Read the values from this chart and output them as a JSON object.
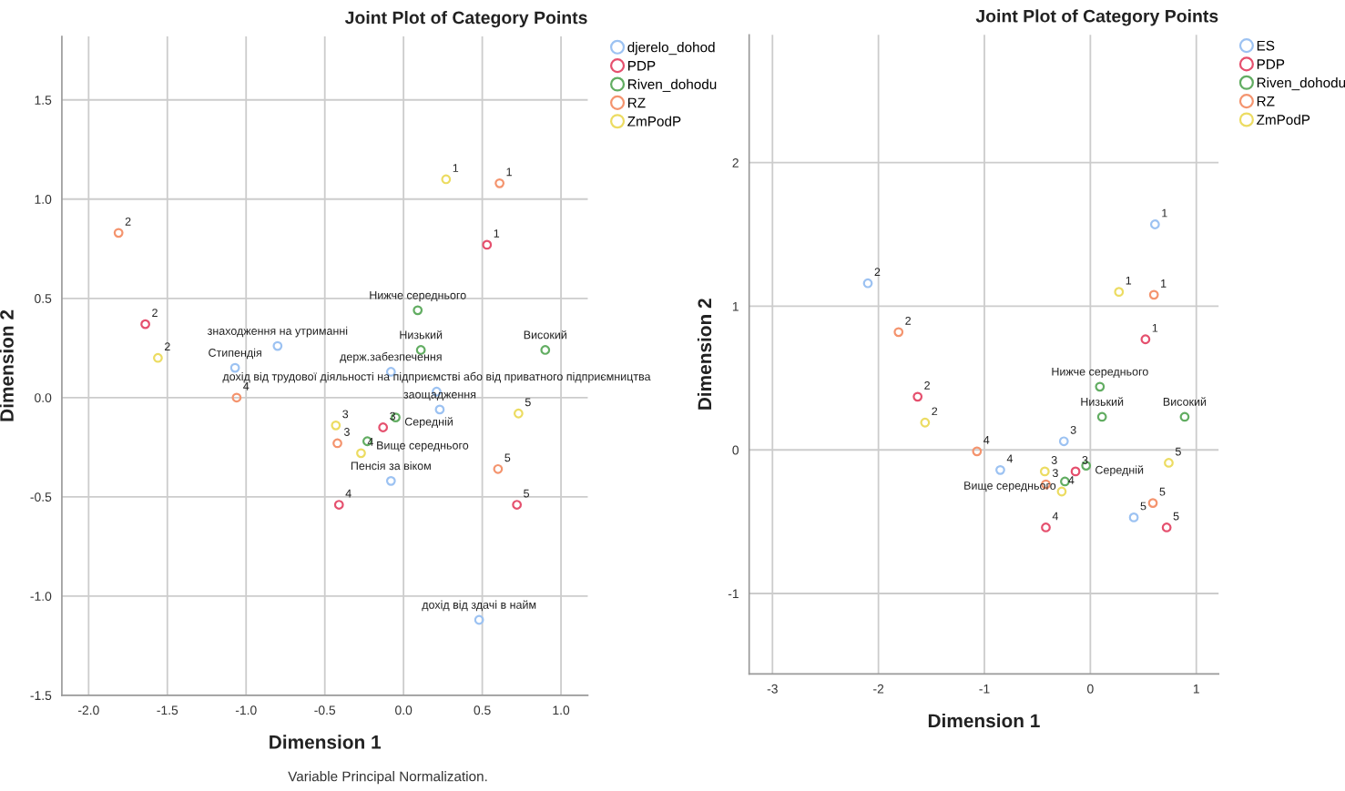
{
  "chart_data": [
    {
      "type": "scatter",
      "title": "Joint Plot of Category Points",
      "xlabel": "Dimension 1",
      "ylabel": "Dimension 2",
      "xlim": [
        -2.17,
        1.17
      ],
      "ylim": [
        -1.5,
        1.82
      ],
      "xticks": [
        {
          "value": -2,
          "label": "-2.0"
        },
        -1.5,
        {
          "value": -1,
          "label": "-1.0"
        },
        -0.5,
        {
          "value": 0,
          "label": "0.0"
        },
        0.5,
        {
          "value": 1,
          "label": "1.0"
        }
      ],
      "yticks": [
        -1.5,
        {
          "value": -1,
          "label": "-1.0"
        },
        -0.5,
        {
          "value": 0,
          "label": "0.0"
        },
        0.5,
        {
          "value": 1,
          "label": "1.0"
        },
        1.5
      ],
      "grid": true,
      "legend": "top right",
      "marker": "circle",
      "series": [
        {
          "name": "djerelo_dohod",
          "color": "#9cc2f2",
          "x": [
            -1.07,
            -0.8,
            -0.08,
            0.21,
            0.23,
            -0.08,
            0.48
          ],
          "values": [
            0.15,
            0.26,
            0.13,
            0.03,
            -0.06,
            -0.42,
            -1.12
          ]
        },
        {
          "name": "PDP",
          "color": "#e5506e",
          "x": [
            0.53,
            -1.64,
            -0.13,
            -0.41,
            0.72
          ],
          "values": [
            0.77,
            0.37,
            -0.15,
            -0.54,
            -0.54
          ]
        },
        {
          "name": "Riven_dohodu",
          "color": "#62ad62",
          "x": [
            0.09,
            0.11,
            0.9,
            -0.05,
            -0.23
          ],
          "values": [
            0.44,
            0.24,
            0.24,
            -0.1,
            -0.22
          ]
        },
        {
          "name": "RZ",
          "color": "#f4946e",
          "x": [
            0.61,
            -1.81,
            -0.42,
            -1.06,
            0.6
          ],
          "values": [
            1.08,
            0.83,
            -0.23,
            0.0,
            -0.36
          ]
        },
        {
          "name": "ZmPodP",
          "color": "#ecdc62",
          "x": [
            0.27,
            -1.56,
            -0.43,
            -0.27,
            0.73
          ],
          "values": [
            1.1,
            0.2,
            -0.14,
            -0.28,
            -0.08
          ]
        }
      ],
      "annotations": [
        "Variable Principal Normalization.",
        {
          "text": "Стипендія",
          "x": -1.07,
          "y": 0.15
        },
        {
          "text": "знаходження на утриманні",
          "x": -0.8,
          "y": 0.26
        },
        {
          "text": "держ.забезпечення",
          "x": -0.08,
          "y": 0.13
        },
        {
          "text": "дохід від трудової діяльності на підприємстві або від приватного підприємництва",
          "x": 0.21,
          "y": 0.03
        },
        {
          "text": "заощадження",
          "x": 0.23,
          "y": -0.06
        },
        {
          "text": "Пенсія за віком",
          "x": -0.08,
          "y": -0.42
        },
        {
          "text": "дохід від здачі в найм",
          "x": 0.48,
          "y": -1.12
        },
        {
          "text": "1",
          "x": 0.53,
          "y": 0.77
        },
        {
          "text": "2",
          "x": -1.64,
          "y": 0.37
        },
        {
          "text": "3",
          "x": -0.13,
          "y": -0.15
        },
        {
          "text": "4",
          "x": -0.41,
          "y": -0.54
        },
        {
          "text": "5",
          "x": 0.72,
          "y": -0.54
        },
        {
          "text": "Нижче середнього",
          "x": 0.09,
          "y": 0.44
        },
        {
          "text": "Низький",
          "x": 0.11,
          "y": 0.24
        },
        {
          "text": "Високий",
          "x": 0.9,
          "y": 0.24
        },
        {
          "text": "Середній",
          "x": -0.05,
          "y": -0.1
        },
        {
          "text": "Вище середнього",
          "x": -0.23,
          "y": -0.22
        },
        {
          "text": "1",
          "x": 0.61,
          "y": 1.08
        },
        {
          "text": "2",
          "x": -1.81,
          "y": 0.83
        },
        {
          "text": "3",
          "x": -0.42,
          "y": -0.23
        },
        {
          "text": "4",
          "x": -1.06,
          "y": 0.0
        },
        {
          "text": "5",
          "x": 0.6,
          "y": -0.36
        },
        {
          "text": "1",
          "x": 0.27,
          "y": 1.1
        },
        {
          "text": "2",
          "x": -1.56,
          "y": 0.2
        },
        {
          "text": "3",
          "x": -0.43,
          "y": -0.14
        },
        {
          "text": "4",
          "x": -0.27,
          "y": -0.28
        },
        {
          "text": "5",
          "x": 0.73,
          "y": -0.08
        }
      ]
    },
    {
      "type": "scatter",
      "title": "Joint Plot of Category Points",
      "xlabel": "Dimension 1",
      "ylabel": "Dimension 2",
      "xlim": [
        -3.22,
        1.21
      ],
      "ylim": [
        -1.56,
        2.89
      ],
      "xticks": [
        -3,
        -2,
        -1,
        0,
        1
      ],
      "yticks": [
        -1,
        0,
        1,
        2
      ],
      "grid": true,
      "legend": "top right",
      "marker": "circle",
      "series": [
        {
          "name": "ES",
          "color": "#9cc2f2",
          "x": [
            0.61,
            -2.1,
            -0.25,
            -0.85,
            0.41
          ],
          "values": [
            1.57,
            1.16,
            0.06,
            -0.14,
            -0.47
          ]
        },
        {
          "name": "PDP",
          "color": "#e5506e",
          "x": [
            0.52,
            -1.63,
            -0.14,
            -0.42,
            0.72
          ],
          "values": [
            0.77,
            0.37,
            -0.15,
            -0.54,
            -0.54
          ]
        },
        {
          "name": "Riven_dohodu",
          "color": "#62ad62",
          "x": [
            0.09,
            0.11,
            0.89,
            -0.04,
            -0.24
          ],
          "values": [
            0.44,
            0.23,
            0.23,
            -0.11,
            -0.22
          ]
        },
        {
          "name": "RZ",
          "color": "#f4946e",
          "x": [
            0.6,
            -1.81,
            -0.42,
            -1.07,
            0.59
          ],
          "values": [
            1.08,
            0.82,
            -0.24,
            -0.01,
            -0.37
          ]
        },
        {
          "name": "ZmPodP",
          "color": "#ecdc62",
          "x": [
            0.27,
            -1.56,
            -0.43,
            -0.27,
            0.74
          ],
          "values": [
            1.1,
            0.19,
            -0.15,
            -0.29,
            -0.09
          ]
        }
      ],
      "annotations": [
        {
          "text": "1",
          "x": 0.61,
          "y": 1.57
        },
        {
          "text": "2",
          "x": -2.1,
          "y": 1.16
        },
        {
          "text": "3",
          "x": -0.25,
          "y": 0.06
        },
        {
          "text": "4",
          "x": -0.85,
          "y": -0.14
        },
        {
          "text": "5",
          "x": 0.41,
          "y": -0.47
        },
        {
          "text": "1",
          "x": 0.52,
          "y": 0.77
        },
        {
          "text": "2",
          "x": -1.63,
          "y": 0.37
        },
        {
          "text": "3",
          "x": -0.14,
          "y": -0.15
        },
        {
          "text": "4",
          "x": -0.42,
          "y": -0.54
        },
        {
          "text": "5",
          "x": 0.72,
          "y": -0.54
        },
        {
          "text": "Нижче середнього",
          "x": 0.09,
          "y": 0.44
        },
        {
          "text": "Низький",
          "x": 0.11,
          "y": 0.23
        },
        {
          "text": "Високий",
          "x": 0.89,
          "y": 0.23
        },
        {
          "text": "Середній",
          "x": -0.04,
          "y": -0.11
        },
        {
          "text": "Вище середнього",
          "x": -0.24,
          "y": -0.22
        },
        {
          "text": "1",
          "x": 0.6,
          "y": 1.08
        },
        {
          "text": "2",
          "x": -1.81,
          "y": 0.82
        },
        {
          "text": "3",
          "x": -0.42,
          "y": -0.24
        },
        {
          "text": "4",
          "x": -1.07,
          "y": -0.01
        },
        {
          "text": "5",
          "x": 0.59,
          "y": -0.37
        },
        {
          "text": "1",
          "x": 0.27,
          "y": 1.1
        },
        {
          "text": "2",
          "x": -1.56,
          "y": 0.19
        },
        {
          "text": "3",
          "x": -0.43,
          "y": -0.15
        },
        {
          "text": "4",
          "x": -0.27,
          "y": -0.29
        },
        {
          "text": "5",
          "x": 0.74,
          "y": -0.09
        }
      ]
    }
  ]
}
